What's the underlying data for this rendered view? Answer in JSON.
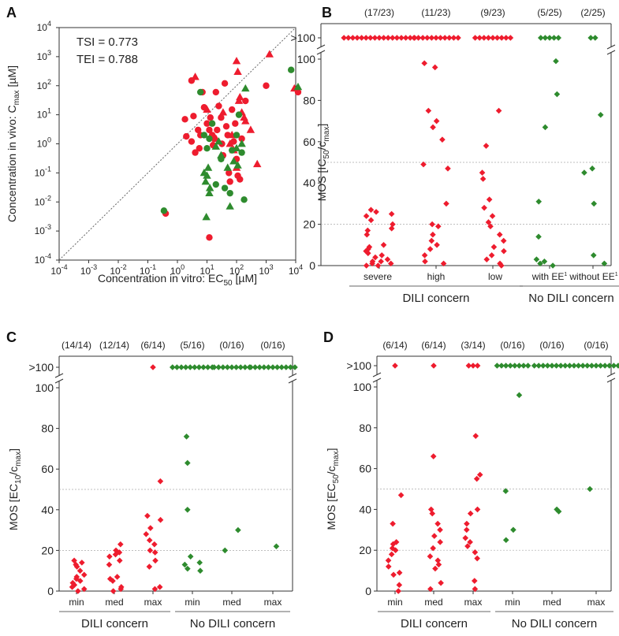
{
  "colors": {
    "dili": "#ee1c2e",
    "no_dili": "#2e8b2e",
    "axis": "#333333",
    "gridline": "#aaaaaa",
    "identity_line": "#666666"
  },
  "chart_data": [
    {
      "panel": "A",
      "type": "scatter",
      "xscale": "log",
      "yscale": "log",
      "xlabel": "Concentration in vitro: EC",
      "xlabel_sub": "50",
      "xlabel_unit": " [µM]",
      "ylabel": "Concentration in vivo: C",
      "ylabel_sub": "max",
      "ylabel_unit": " [µM]",
      "xlim": [
        0.0001,
        10000
      ],
      "ylim": [
        0.0001,
        10000
      ],
      "x_ticks": [
        {
          "base": "10",
          "exp": "-4",
          "value": 0.0001
        },
        {
          "base": "10",
          "exp": "-3",
          "value": 0.001
        },
        {
          "base": "10",
          "exp": "-2",
          "value": 0.01
        },
        {
          "base": "10",
          "exp": "-1",
          "value": 0.1
        },
        {
          "base": "10",
          "exp": "0",
          "value": 1
        },
        {
          "base": "10",
          "exp": "1",
          "value": 10
        },
        {
          "base": "10",
          "exp": "2",
          "value": 100
        },
        {
          "base": "10",
          "exp": "3",
          "value": 1000
        },
        {
          "base": "10",
          "exp": "4",
          "value": 10000
        }
      ],
      "y_ticks": [
        {
          "base": "10",
          "exp": "-4",
          "value": 0.0001
        },
        {
          "base": "10",
          "exp": "-3",
          "value": 0.001
        },
        {
          "base": "10",
          "exp": "-2",
          "value": 0.01
        },
        {
          "base": "10",
          "exp": "-1",
          "value": 0.1
        },
        {
          "base": "10",
          "exp": "0",
          "value": 1
        },
        {
          "base": "10",
          "exp": "1",
          "value": 10
        },
        {
          "base": "10",
          "exp": "2",
          "value": 100
        },
        {
          "base": "10",
          "exp": "3",
          "value": 1000
        },
        {
          "base": "10",
          "exp": "4",
          "value": 10000
        }
      ],
      "annotations": [
        "TSI =  0.773",
        "TEI =  0.788"
      ],
      "identity_line": true,
      "series": [
        {
          "name": "DILI concern (circle)",
          "color_key": "dili",
          "marker": "circle",
          "points": [
            [
              1.8,
              7
            ],
            [
              3.5,
              9
            ],
            [
              2,
              1.8
            ],
            [
              3,
              1.2
            ],
            [
              5,
              3
            ],
            [
              5.5,
              0.7
            ],
            [
              6,
              2
            ],
            [
              7,
              60
            ],
            [
              8,
              18
            ],
            [
              10,
              5
            ],
            [
              12,
              3
            ],
            [
              13,
              8
            ],
            [
              15,
              2
            ],
            [
              16,
              0.9
            ],
            [
              18,
              1.5
            ],
            [
              20,
              60
            ],
            [
              22,
              3
            ],
            [
              25,
              20
            ],
            [
              30,
              8
            ],
            [
              32,
              1
            ],
            [
              35,
              0.4
            ],
            [
              40,
              120
            ],
            [
              45,
              4
            ],
            [
              50,
              2
            ],
            [
              55,
              0.1
            ],
            [
              60,
              0.05
            ],
            [
              70,
              15
            ],
            [
              80,
              1.2
            ],
            [
              90,
              5
            ],
            [
              100,
              0.3
            ],
            [
              110,
              0.08
            ],
            [
              130,
              0.06
            ],
            [
              150,
              1.5
            ],
            [
              200,
              30
            ],
            [
              1000,
              100
            ],
            [
              12000,
              60
            ],
            [
              12,
              0.0006
            ],
            [
              3,
              150
            ],
            [
              0.4,
              0.004
            ],
            [
              4,
              0.5
            ]
          ]
        },
        {
          "name": "DILI concern (triangle)",
          "color_key": "dili",
          "marker": "triangle",
          "points": [
            [
              4,
              200
            ],
            [
              10,
              15
            ],
            [
              20,
              1.5
            ],
            [
              35,
              12
            ],
            [
              60,
              1
            ],
            [
              80,
              0.6
            ],
            [
              100,
              700
            ],
            [
              110,
              300
            ],
            [
              120,
              30
            ],
            [
              130,
              40
            ],
            [
              150,
              12
            ],
            [
              180,
              8
            ],
            [
              200,
              6
            ],
            [
              300,
              3
            ],
            [
              500,
              0.2
            ],
            [
              1300,
              1200
            ],
            [
              9000,
              80
            ],
            [
              100,
              0.15
            ],
            [
              70,
              2
            ]
          ]
        },
        {
          "name": "No DILI concern (circle)",
          "color_key": "no_dili",
          "marker": "circle",
          "points": [
            [
              0.35,
              0.005
            ],
            [
              6,
              60
            ],
            [
              8,
              2
            ],
            [
              10,
              0.7
            ],
            [
              12,
              1.5
            ],
            [
              15,
              5
            ],
            [
              20,
              0.04
            ],
            [
              30,
              0.3
            ],
            [
              40,
              0.03
            ],
            [
              60,
              0.02
            ],
            [
              70,
              0.6
            ],
            [
              100,
              2
            ],
            [
              120,
              10
            ],
            [
              150,
              0.5
            ],
            [
              180,
              0.012
            ],
            [
              7000,
              350
            ]
          ]
        },
        {
          "name": "No DILI concern (triangle)",
          "color_key": "no_dili",
          "marker": "triangle",
          "points": [
            [
              8,
              0.1
            ],
            [
              9,
              0.05
            ],
            [
              10,
              0.08
            ],
            [
              11,
              0.15
            ],
            [
              12,
              0.02
            ],
            [
              12.5,
              0.03
            ],
            [
              9.5,
              0.003
            ],
            [
              20,
              0.8
            ],
            [
              25,
              1.2
            ],
            [
              30,
              0.4
            ],
            [
              50,
              0.15
            ],
            [
              80,
              0.25
            ],
            [
              100,
              0.7
            ],
            [
              110,
              0.18
            ],
            [
              150,
              1
            ],
            [
              200,
              80
            ],
            [
              12000,
              90
            ],
            [
              60,
              0.007
            ]
          ]
        }
      ]
    },
    {
      "panel": "B",
      "type": "scatter",
      "ylabel": "MOS [IC",
      "ylabel_sub": "50",
      "ylabel_mid": "/c",
      "ylabel_sub2": "max",
      "ylabel_end": "]",
      "ylim": [
        0,
        100
      ],
      "y_ticks": [
        "0",
        "20",
        "40",
        "60",
        "80",
        "100"
      ],
      "overflow_label": ">100",
      "dashed_lines": [
        20,
        50
      ],
      "categories": [
        "severe",
        "high",
        "low",
        "with EE",
        "without EE"
      ],
      "category_superscripts": [
        "",
        "",
        "",
        "1",
        "1"
      ],
      "counts": [
        "(17/23)",
        "(11/23)",
        "(9/23)",
        "(5/25)",
        "(2/25)"
      ],
      "groups": [
        "DILI concern",
        "No DILI concern"
      ],
      "group_spans": [
        [
          0,
          2
        ],
        [
          3,
          4
        ]
      ],
      "category_colors": [
        "dili",
        "dili",
        "dili",
        "no_dili",
        "no_dili"
      ],
      "overflow_counts": [
        17,
        11,
        9,
        5,
        2
      ],
      "values": [
        [
          0,
          0,
          1,
          1,
          2,
          2,
          3,
          4,
          5,
          6,
          7,
          8,
          9,
          10,
          15,
          17,
          18,
          20,
          22,
          24,
          25,
          26,
          27
        ],
        [
          1,
          2,
          5,
          8,
          10,
          12,
          15,
          19,
          20,
          30,
          47,
          49,
          61,
          67,
          70,
          75,
          96,
          98
        ],
        [
          0,
          1,
          3,
          5,
          7,
          9,
          12,
          15,
          19,
          21,
          24,
          28,
          32,
          42,
          45,
          58,
          75
        ]
      ],
      "values_extra": [
        [
          0,
          1,
          2,
          3,
          14,
          31,
          67,
          83,
          99
        ],
        [
          1,
          5,
          30,
          45,
          47,
          73
        ]
      ]
    },
    {
      "panel": "C",
      "type": "scatter",
      "ylabel": "MOS [EC",
      "ylabel_sub": "10",
      "ylabel_mid": "/c",
      "ylabel_sub2": "max",
      "ylabel_end": "]",
      "ylim": [
        0,
        100
      ],
      "y_ticks": [
        "0",
        "20",
        "40",
        "60",
        "80",
        "100"
      ],
      "overflow_label": ">100",
      "dashed_lines": [
        20,
        50
      ],
      "categories": [
        "min",
        "med",
        "max",
        "min",
        "med",
        "max"
      ],
      "counts": [
        "(14/14)",
        "(12/14)",
        "(6/14)",
        "(5/16)",
        "(0/16)",
        "(0/16)"
      ],
      "groups": [
        "DILI concern",
        "No DILI concern"
      ],
      "group_spans": [
        [
          0,
          2
        ],
        [
          3,
          5
        ]
      ],
      "category_colors": [
        "dili",
        "dili",
        "dili",
        "no_dili",
        "no_dili",
        "no_dili"
      ],
      "overflow_counts": [
        0,
        0,
        1,
        10,
        9,
        11
      ],
      "values": [
        [
          0,
          1,
          2,
          3,
          4,
          5,
          6,
          7,
          8,
          10,
          12,
          13,
          14,
          15
        ],
        [
          0,
          1,
          2,
          5,
          6,
          7,
          13,
          15,
          17,
          18,
          19,
          20,
          23
        ],
        [
          1,
          2,
          12,
          15,
          19,
          20,
          23,
          25,
          28,
          31,
          35,
          37,
          54
        ],
        [
          10,
          11,
          13,
          14,
          17,
          40,
          63,
          76
        ],
        [
          20,
          30
        ],
        [
          22
        ]
      ]
    },
    {
      "panel": "D",
      "type": "scatter",
      "ylabel": "MOS [EC",
      "ylabel_sub": "50",
      "ylabel_mid": "/c",
      "ylabel_sub2": "max",
      "ylabel_end": "]",
      "ylim": [
        0,
        100
      ],
      "y_ticks": [
        "0",
        "20",
        "40",
        "60",
        "80",
        "100"
      ],
      "overflow_label": ">100",
      "dashed_lines": [
        20,
        50
      ],
      "categories": [
        "min",
        "med",
        "max",
        "min",
        "med",
        "max"
      ],
      "counts": [
        "(6/14)",
        "(6/14)",
        "(3/14)",
        "(0/16)",
        "(0/16)",
        "(0/16)"
      ],
      "groups": [
        "DILI concern",
        "No DILI concern"
      ],
      "group_spans": [
        [
          0,
          2
        ],
        [
          3,
          5
        ]
      ],
      "category_colors": [
        "dili",
        "dili",
        "dili",
        "no_dili",
        "no_dili",
        "no_dili"
      ],
      "overflow_counts": [
        1,
        1,
        3,
        8,
        9,
        11
      ],
      "values": [
        [
          0,
          3,
          8,
          9,
          12,
          15,
          18,
          20,
          21,
          23,
          24,
          33,
          47
        ],
        [
          1,
          4,
          11,
          13,
          15,
          17,
          21,
          24,
          27,
          30,
          33,
          38,
          40,
          66
        ],
        [
          1,
          5,
          16,
          19,
          22,
          24,
          26,
          30,
          33,
          38,
          40,
          55,
          57,
          76
        ],
        [
          25,
          30,
          49,
          96
        ],
        [
          39,
          40
        ],
        [
          50
        ]
      ]
    }
  ]
}
